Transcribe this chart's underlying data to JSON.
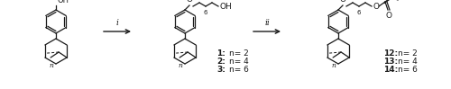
{
  "bg_color": "#ffffff",
  "text_color": "#1a1a1a",
  "fig_width": 5.0,
  "fig_height": 0.99,
  "dpi": 100,
  "arrow_i_label": "i",
  "arrow_ii_label": "ii",
  "compounds_left": [
    "1",
    "2",
    "3"
  ],
  "compounds_left_n": [
    "n= 2",
    "n= 4",
    "n= 6"
  ],
  "compounds_right": [
    "12",
    "13",
    "14"
  ],
  "compounds_right_n": [
    "n= 2",
    "n= 4",
    "n= 6"
  ],
  "subscript_6": "6",
  "oh_label": "OH",
  "o_label": "O"
}
